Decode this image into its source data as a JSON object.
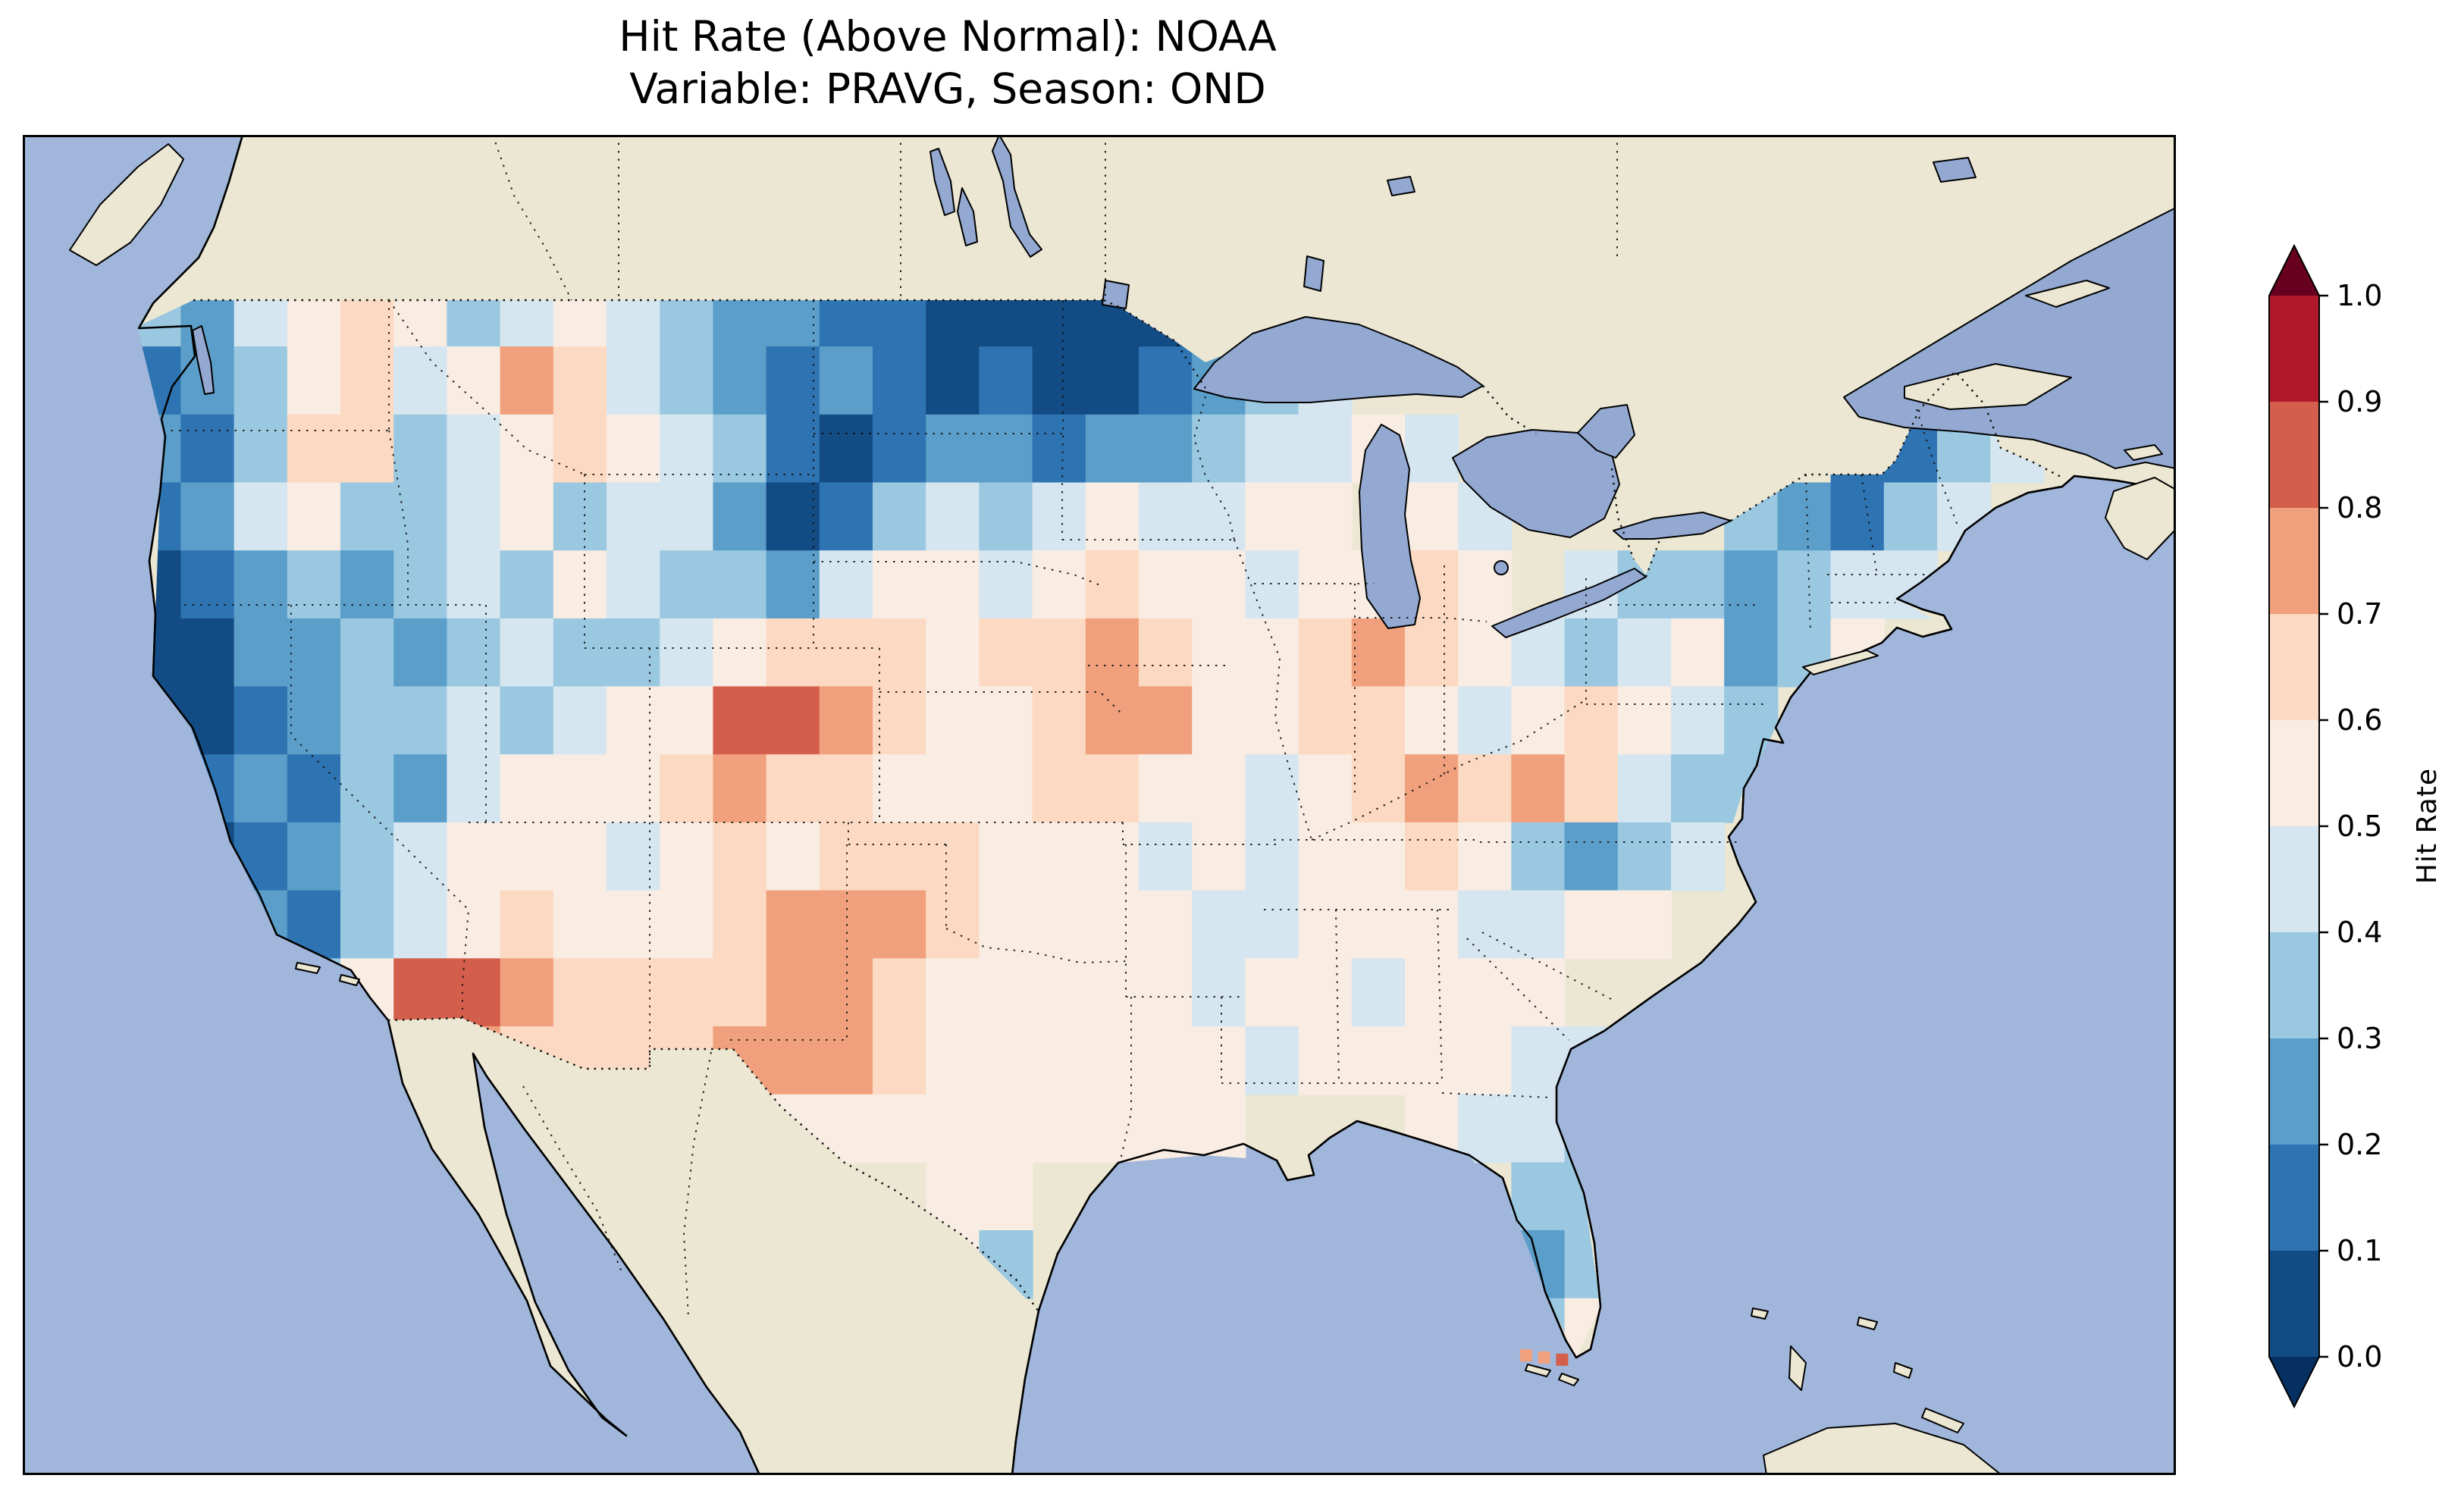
{
  "title": {
    "line1": "Hit Rate (Above Normal): NOAA",
    "line2": "Variable: PRAVG, Season: OND"
  },
  "colorbar": {
    "label": "Hit Rate",
    "ticks": [
      "0.0",
      "0.1",
      "0.2",
      "0.3",
      "0.4",
      "0.5",
      "0.6",
      "0.7",
      "0.8",
      "0.9",
      "1.0"
    ],
    "segment_colors_low_to_high": [
      "#134b85",
      "#2e74b2",
      "#5a9ec9",
      "#9ac8e0",
      "#d5e6f0",
      "#f9ece3",
      "#fcd9c2",
      "#f0a07c",
      "#d45e4c",
      "#b2182b"
    ],
    "under_color": "#053061",
    "over_color": "#67001f"
  },
  "map_colors": {
    "ocean": "#a0b6da",
    "land": "#ebe7d2",
    "lakes": "#93a9d2",
    "coastline": "#000000"
  },
  "chart_data": {
    "type": "heatmap",
    "title": "Hit Rate (Above Normal): NOAA",
    "subtitle": "Variable: PRAVG, Season: OND",
    "source": "NOAA",
    "variable": "PRAVG",
    "season": "OND",
    "value_name": "Hit Rate",
    "bins": [
      0.0,
      0.1,
      0.2,
      0.3,
      0.4,
      0.5,
      0.6,
      0.7,
      0.8,
      0.9,
      1.0
    ],
    "colorbar_extend": "both",
    "extent": {
      "lon_min": -125.0,
      "lon_max": -66.5,
      "lat_min": 24.5,
      "lat_max": 49.5
    },
    "grid": {
      "cols": 36,
      "rows": 16,
      "order": "north_to_south",
      "values": [
        [
          0.35,
          0.25,
          0.45,
          0.55,
          0.65,
          0.55,
          0.35,
          0.45,
          0.55,
          0.45,
          0.35,
          0.25,
          0.25,
          0.15,
          0.15,
          0.05,
          0.05,
          0.05,
          0.05,
          0.05,
          0.15,
          0.25,
          0.35,
          null,
          null,
          null,
          null,
          null,
          null,
          null,
          null,
          null,
          null,
          null,
          null,
          null
        ],
        [
          0.15,
          0.25,
          0.35,
          0.55,
          0.65,
          0.45,
          0.55,
          0.75,
          0.65,
          0.45,
          0.35,
          0.25,
          0.15,
          0.25,
          0.15,
          0.05,
          0.15,
          0.05,
          0.05,
          0.15,
          0.25,
          0.35,
          0.45,
          null,
          null,
          null,
          null,
          null,
          null,
          null,
          null,
          null,
          0.25,
          0.25,
          0.35,
          null
        ],
        [
          0.25,
          0.15,
          0.35,
          0.65,
          0.65,
          0.35,
          0.45,
          0.55,
          0.65,
          0.55,
          0.45,
          0.35,
          0.15,
          0.05,
          0.15,
          0.25,
          0.25,
          0.15,
          0.25,
          0.25,
          0.35,
          0.45,
          0.45,
          0.55,
          0.45,
          null,
          null,
          null,
          null,
          null,
          null,
          null,
          0.15,
          0.15,
          0.35,
          0.45
        ],
        [
          0.15,
          0.25,
          0.45,
          0.55,
          0.35,
          0.35,
          0.45,
          0.55,
          0.35,
          0.45,
          0.45,
          0.25,
          0.05,
          0.15,
          0.35,
          0.45,
          0.35,
          0.45,
          0.55,
          0.45,
          0.45,
          0.55,
          0.55,
          null,
          0.55,
          0.45,
          null,
          null,
          null,
          null,
          0.35,
          0.25,
          0.15,
          0.35,
          0.45,
          null
        ],
        [
          0.05,
          0.15,
          0.25,
          0.35,
          0.25,
          0.35,
          0.45,
          0.35,
          0.55,
          0.45,
          0.35,
          0.35,
          0.25,
          0.45,
          0.55,
          0.55,
          0.45,
          0.55,
          0.65,
          0.55,
          0.55,
          0.45,
          0.55,
          0.55,
          0.65,
          0.55,
          null,
          0.45,
          0.35,
          0.35,
          0.25,
          0.35,
          0.45,
          0.45,
          null,
          null
        ],
        [
          0.05,
          0.05,
          0.25,
          0.25,
          0.35,
          0.25,
          0.35,
          0.45,
          0.35,
          0.35,
          0.45,
          0.55,
          0.65,
          0.65,
          0.65,
          0.55,
          0.65,
          0.65,
          0.75,
          0.65,
          0.55,
          0.55,
          0.65,
          0.75,
          0.65,
          0.55,
          0.45,
          0.35,
          0.45,
          0.55,
          0.25,
          0.35,
          0.55,
          null,
          null,
          null
        ],
        [
          0.05,
          0.05,
          0.15,
          0.25,
          0.35,
          0.35,
          0.45,
          0.35,
          0.45,
          0.55,
          0.55,
          0.85,
          0.85,
          0.75,
          0.65,
          0.55,
          0.55,
          0.65,
          0.75,
          0.75,
          0.55,
          0.55,
          0.65,
          0.65,
          0.55,
          0.45,
          0.55,
          0.65,
          0.55,
          0.45,
          0.35,
          null,
          null,
          null,
          null,
          null
        ],
        [
          0.05,
          0.15,
          0.25,
          0.15,
          0.35,
          0.25,
          0.45,
          0.55,
          0.55,
          0.55,
          0.65,
          0.75,
          0.65,
          0.65,
          0.55,
          0.55,
          0.55,
          0.65,
          0.65,
          0.55,
          0.55,
          0.45,
          0.55,
          0.65,
          0.75,
          0.65,
          0.75,
          0.65,
          0.45,
          0.35,
          0.35,
          null,
          null,
          null,
          null,
          null
        ],
        [
          null,
          0.05,
          0.15,
          0.25,
          0.35,
          0.45,
          0.55,
          0.55,
          0.55,
          0.45,
          0.55,
          0.65,
          0.55,
          0.65,
          0.65,
          0.65,
          0.55,
          0.55,
          0.55,
          0.45,
          0.55,
          0.45,
          0.55,
          0.55,
          0.65,
          0.55,
          0.35,
          0.25,
          0.35,
          0.45,
          null,
          null,
          null,
          null,
          null,
          null
        ],
        [
          null,
          0.15,
          0.25,
          0.15,
          0.35,
          0.45,
          0.55,
          0.65,
          0.55,
          0.55,
          0.55,
          0.65,
          0.75,
          0.75,
          0.75,
          0.65,
          0.55,
          0.55,
          0.55,
          0.55,
          0.45,
          0.45,
          0.55,
          0.55,
          0.55,
          0.45,
          0.45,
          0.55,
          0.55,
          null,
          null,
          null,
          null,
          null,
          null,
          null
        ],
        [
          null,
          null,
          0.25,
          0.35,
          0.55,
          0.85,
          0.85,
          0.75,
          0.65,
          0.65,
          0.65,
          0.65,
          0.75,
          0.75,
          0.65,
          0.55,
          0.55,
          0.55,
          0.55,
          0.55,
          0.45,
          0.55,
          0.55,
          0.45,
          0.55,
          0.55,
          0.55,
          null,
          null,
          null,
          null,
          null,
          null,
          null,
          null,
          null
        ],
        [
          null,
          null,
          null,
          null,
          null,
          0.75,
          0.75,
          0.65,
          0.65,
          0.65,
          0.65,
          0.75,
          0.75,
          0.75,
          0.65,
          0.55,
          0.55,
          0.55,
          0.55,
          0.55,
          0.55,
          0.45,
          0.55,
          0.55,
          0.55,
          0.55,
          0.45,
          0.45,
          null,
          null,
          null,
          null,
          null,
          null,
          null,
          null
        ],
        [
          null,
          null,
          null,
          null,
          null,
          null,
          null,
          null,
          null,
          0.65,
          0.75,
          0.65,
          0.55,
          0.55,
          0.55,
          0.55,
          0.55,
          0.55,
          0.55,
          0.55,
          0.55,
          null,
          null,
          null,
          0.55,
          0.45,
          0.45,
          0.35,
          null,
          null,
          null,
          null,
          null,
          null,
          null,
          null
        ],
        [
          null,
          null,
          null,
          null,
          null,
          null,
          null,
          null,
          null,
          null,
          null,
          null,
          null,
          null,
          null,
          0.55,
          0.55,
          null,
          null,
          null,
          null,
          null,
          null,
          null,
          null,
          null,
          0.35,
          0.35,
          null,
          null,
          null,
          null,
          null,
          null,
          null,
          null
        ],
        [
          null,
          null,
          null,
          null,
          null,
          null,
          null,
          null,
          null,
          null,
          null,
          null,
          null,
          null,
          null,
          0.55,
          0.35,
          null,
          null,
          null,
          null,
          null,
          null,
          null,
          null,
          null,
          0.25,
          0.35,
          null,
          null,
          null,
          null,
          null,
          null,
          null,
          null
        ],
        [
          null,
          null,
          null,
          null,
          null,
          null,
          null,
          null,
          null,
          null,
          null,
          null,
          null,
          null,
          null,
          null,
          null,
          null,
          null,
          null,
          null,
          null,
          null,
          null,
          null,
          null,
          0.35,
          0.55,
          null,
          null,
          null,
          null,
          null,
          null,
          null,
          null
        ]
      ]
    },
    "point_markers": [
      {
        "lon": -82.3,
        "lat": 24.75,
        "value": 0.75
      },
      {
        "lon": -81.75,
        "lat": 24.7,
        "value": 0.75
      },
      {
        "lon": -81.2,
        "lat": 24.65,
        "value": 0.85
      }
    ]
  }
}
